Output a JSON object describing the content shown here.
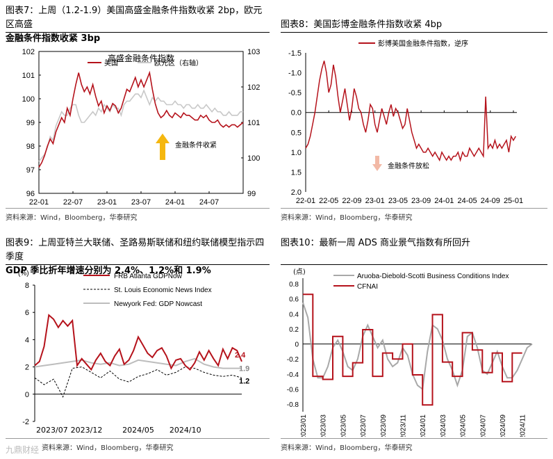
{
  "panels": [
    {
      "title_line1": "图表7：上周（1.2-1.9）美国高盛金融条件指数收紧 2bp，欧元区高盛",
      "title_line2": "金融条件指数收紧 3bp",
      "source": "资料来源：Wind，Bloomberg，华泰研究"
    },
    {
      "title_line1": "图表8：美国彭博金融条件指数收紧 4bp",
      "title_line2": "",
      "source": "资料来源：Wind，Bloomberg，华泰研究"
    },
    {
      "title_line1": "图表9：上周亚特兰大联储、圣路易斯联储和纽约联储模型指示四季度",
      "title_line2": "GDP 季比折年增速分别为 2.4%、1.2%和 1.9%",
      "source": "资料来源：Wind，Bloomberg，华泰研究"
    },
    {
      "title_line1": "图表10：最新一周 ADS 商业景气指数有所回升",
      "title_line2": "",
      "source": "资料来源：Wind，Bloomberg，华泰研究"
    }
  ],
  "watermark": "九鼎财经",
  "colors": {
    "red": "#b5121b",
    "gray": "#c8c8c8",
    "dark": "#000000",
    "arrow_up": "#f5b70f",
    "arrow_down": "#f2b9a6"
  },
  "chart_data": [
    {
      "type": "line",
      "title": "高盛金融条件指数",
      "categories": [
        "22-01",
        "22-07",
        "23-01",
        "23-07",
        "24-01",
        "24-07"
      ],
      "ylim_left": [
        96,
        102
      ],
      "ylim_right": [
        99,
        103
      ],
      "yticks_left": [
        "102",
        "101",
        "100",
        "99",
        "98",
        "97",
        "96"
      ],
      "yticks_right": [
        "103",
        "102",
        "101",
        "100",
        "99"
      ],
      "annotation": "金融条件收紧",
      "series": [
        {
          "name": "美国",
          "axis": "left",
          "x": [
            0,
            0.5,
            1,
            1.5,
            2,
            2.5,
            3,
            3.5,
            4,
            4.5,
            5,
            5.5,
            6,
            6.5,
            7,
            7.5,
            8,
            8.5,
            9,
            9.5,
            10,
            10.5,
            11,
            11.5,
            12,
            12.5,
            13,
            13.5,
            14,
            14.5,
            15,
            15.5,
            16,
            16.5,
            17,
            17.5,
            18,
            18.5,
            19,
            19.5,
            20,
            20.5,
            21,
            21.5,
            22,
            22.5,
            23,
            23.5,
            24,
            24.5,
            25,
            25.5,
            26,
            26.5,
            27,
            27.5,
            28,
            28.5,
            29,
            29.5,
            30,
            30.5,
            31,
            31.5,
            32,
            32.5,
            33,
            33.5,
            34,
            34.5,
            35,
            35.5,
            36
          ],
          "values": [
            97.1,
            97.3,
            97.6,
            98.0,
            98.3,
            98.1,
            98.6,
            98.9,
            99.2,
            99.0,
            99.6,
            99.3,
            100.0,
            100.6,
            101.1,
            100.6,
            100.3,
            100.5,
            100.2,
            100.6,
            100.1,
            99.7,
            99.9,
            99.4,
            99.7,
            99.5,
            99.8,
            99.7,
            99.4,
            99.6,
            100.0,
            100.4,
            100.3,
            100.6,
            100.9,
            100.5,
            100.8,
            100.5,
            100.8,
            101.1,
            100.4,
            99.8,
            99.4,
            99.2,
            99.3,
            99.5,
            99.3,
            99.2,
            99.4,
            99.3,
            99.2,
            99.4,
            99.3,
            99.3,
            99.2,
            99.1,
            99.1,
            99.3,
            99.2,
            99.3,
            99.1,
            99.0,
            99.0,
            99.1,
            98.9,
            98.8,
            98.9,
            98.8,
            98.9,
            98.9,
            98.8,
            98.9,
            99.0
          ]
        },
        {
          "name": "欧元区（右轴）",
          "axis": "right",
          "x": [
            0,
            0.5,
            1,
            1.5,
            2,
            2.5,
            3,
            3.5,
            4,
            4.5,
            5,
            5.5,
            6,
            6.5,
            7,
            7.5,
            8,
            8.5,
            9,
            9.5,
            10,
            10.5,
            11,
            11.5,
            12,
            12.5,
            13,
            13.5,
            14,
            14.5,
            15,
            15.5,
            16,
            16.5,
            17,
            17.5,
            18,
            18.5,
            19,
            19.5,
            20,
            20.5,
            21,
            21.5,
            22,
            22.5,
            23,
            23.5,
            24,
            24.5,
            25,
            25.5,
            26,
            26.5,
            27,
            27.5,
            28,
            28.5,
            29,
            29.5,
            30,
            30.5,
            31,
            31.5,
            32,
            32.5,
            33,
            33.5,
            34,
            34.5,
            35,
            35.5,
            36
          ],
          "values": [
            99.9,
            100.0,
            100.1,
            100.3,
            100.6,
            100.5,
            100.9,
            101.1,
            101.3,
            101.2,
            101.2,
            101.4,
            101.5,
            101.5,
            101.2,
            101.0,
            101.0,
            101.1,
            101.2,
            101.3,
            101.2,
            101.4,
            101.3,
            101.5,
            101.4,
            101.3,
            101.5,
            101.4,
            101.4,
            101.2,
            101.5,
            101.6,
            101.6,
            101.7,
            101.8,
            101.8,
            101.7,
            101.9,
            101.7,
            101.5,
            101.7,
            101.6,
            101.7,
            101.6,
            101.6,
            101.5,
            101.5,
            101.5,
            101.6,
            101.5,
            101.5,
            101.4,
            101.5,
            101.5,
            101.4,
            101.4,
            101.5,
            101.4,
            101.4,
            101.5,
            101.4,
            101.3,
            101.4,
            101.3,
            101.3,
            101.2,
            101.2,
            101.3,
            101.2,
            101.2,
            101.2,
            101.3,
            101.3
          ]
        }
      ]
    },
    {
      "type": "line",
      "title": "彭博美国金融条件指数，逆序",
      "categories": [
        "22-01",
        "22-05",
        "22-09",
        "23-01",
        "23-05",
        "23-09",
        "24-01",
        "24-05",
        "24-09",
        "25-01"
      ],
      "ylim": [
        2.0,
        -1.5
      ],
      "yticks": [
        "-1.5",
        "-1.0",
        "-0.5",
        "0.0",
        "0.5",
        "1.0",
        "1.5",
        "2.0"
      ],
      "inverted": true,
      "annotation": "金融条件放松",
      "series": [
        {
          "name": "彭博美国金融条件指数，逆序",
          "x": [
            0,
            0.4,
            0.8,
            1.2,
            1.6,
            2.0,
            2.4,
            2.8,
            3.2,
            3.6,
            4.0,
            4.4,
            4.8,
            5.2,
            5.6,
            6.0,
            6.4,
            6.8,
            7.2,
            7.6,
            8.0,
            8.4,
            8.8,
            9.2,
            9.6,
            10.0,
            10.4,
            10.8,
            11.2,
            11.6,
            12.0,
            12.4,
            12.8,
            13.2,
            13.6,
            14.0,
            14.4,
            14.8,
            15.2,
            15.6,
            16.0,
            16.4,
            16.8,
            17.2,
            17.6,
            18.0,
            18.4,
            18.8,
            19.2,
            19.6,
            20.0,
            20.4,
            20.8,
            21.2,
            21.6,
            22.0,
            22.4,
            22.8,
            23.2,
            23.6,
            24.0,
            24.4,
            24.8,
            25.2,
            25.6,
            26.0,
            26.4,
            26.8,
            27.2,
            27.6,
            28.0,
            28.4,
            28.8,
            29.2,
            29.6,
            30.0,
            30.4,
            30.8,
            31.2,
            31.6,
            32.0,
            32.4,
            32.8,
            33.2,
            33.6,
            34.0,
            34.4,
            34.8,
            35.2,
            35.6,
            36.0,
            36.4
          ],
          "values": [
            0.9,
            0.8,
            0.6,
            0.3,
            0.0,
            -0.4,
            -0.8,
            -1.1,
            -1.3,
            -1.0,
            -0.5,
            -0.7,
            -1.2,
            -0.9,
            -0.4,
            0.0,
            -0.3,
            -0.6,
            -0.2,
            0.2,
            -0.1,
            -0.6,
            -0.4,
            -0.1,
            0.0,
            0.3,
            0.5,
            0.2,
            -0.2,
            -0.1,
            0.3,
            0.5,
            0.2,
            -0.1,
            0.1,
            0.3,
            0.0,
            -0.2,
            0.1,
            -0.1,
            0.0,
            0.2,
            0.4,
            0.3,
            -0.1,
            0.2,
            0.5,
            0.7,
            0.9,
            0.8,
            0.9,
            1.0,
            1.0,
            0.9,
            1.0,
            1.1,
            1.0,
            1.1,
            1.2,
            1.0,
            1.1,
            1.2,
            1.1,
            1.2,
            1.1,
            1.1,
            1.0,
            1.2,
            1.0,
            1.1,
            1.1,
            0.9,
            1.0,
            1.1,
            1.0,
            0.9,
            1.0,
            1.1,
            -0.4,
            0.9,
            0.8,
            0.9,
            0.7,
            0.9,
            0.8,
            0.9,
            0.8,
            0.7,
            1.0,
            0.6,
            0.7,
            0.6
          ]
        }
      ]
    },
    {
      "type": "line",
      "title": "",
      "unit": "(%)",
      "categories": [
        "2023/07",
        "2023/12",
        "2024/05",
        "2024/10"
      ],
      "ylim": [
        -2,
        8
      ],
      "yticks": [
        "8",
        "6",
        "4",
        "2",
        "0",
        "-2"
      ],
      "end_labels": [
        "2.4",
        "1.9",
        "1.2"
      ],
      "series": [
        {
          "name": "FRB Atlanta GDPNow",
          "style": "solid-red",
          "x": [
            0,
            0.5,
            1,
            1.5,
            2,
            2.5,
            3,
            3.5,
            4,
            4.5,
            5,
            5.5,
            6,
            6.5,
            7,
            7.5,
            8,
            8.5,
            9,
            9.5,
            10,
            10.5,
            11,
            11.5,
            12,
            12.5,
            13,
            13.5,
            14,
            14.5,
            15,
            15.5,
            16,
            16.5,
            17,
            17.5,
            18,
            18.5,
            19,
            19.5,
            20,
            20.5,
            21,
            21.5,
            22
          ],
          "values": [
            2.1,
            2.4,
            3.5,
            5.8,
            5.5,
            4.9,
            5.4,
            5.0,
            5.4,
            2.1,
            2.6,
            2.2,
            1.8,
            2.5,
            3.0,
            2.4,
            2.1,
            2.8,
            3.3,
            2.2,
            2.5,
            3.2,
            4.2,
            3.6,
            3.0,
            2.7,
            3.2,
            3.4,
            2.8,
            1.9,
            2.5,
            2.6,
            2.1,
            1.8,
            2.3,
            3.1,
            2.5,
            3.2,
            2.6,
            2.1,
            3.3,
            2.6,
            3.4,
            3.2,
            2.4
          ]
        },
        {
          "name": "St. Louis Economic News Index",
          "style": "dashed-black",
          "x": [
            0,
            1,
            2,
            3,
            4,
            5,
            6,
            7,
            8,
            9,
            10,
            11,
            12,
            13,
            14,
            15,
            16,
            17,
            18,
            19,
            20,
            21,
            22
          ],
          "values": [
            1.2,
            0.7,
            1.1,
            -0.2,
            1.9,
            2.0,
            1.6,
            1.2,
            1.7,
            1.1,
            0.9,
            1.3,
            1.5,
            1.8,
            1.4,
            1.6,
            2.0,
            1.9,
            1.6,
            1.4,
            1.3,
            1.4,
            1.2
          ]
        },
        {
          "name": "Newyork Fed: GDP Nowcast",
          "style": "solid-gray",
          "x": [
            0,
            1,
            2,
            3,
            4,
            5,
            6,
            7,
            8,
            9,
            10,
            11,
            12,
            13,
            14,
            15,
            16,
            17,
            18,
            19,
            20,
            21,
            22
          ],
          "values": [
            2.0,
            2.1,
            2.2,
            2.3,
            2.4,
            2.5,
            2.3,
            2.2,
            2.3,
            2.1,
            2.2,
            2.5,
            2.4,
            2.3,
            2.2,
            2.1,
            2.4,
            2.6,
            2.2,
            2.0,
            1.9,
            1.9,
            1.9
          ]
        }
      ]
    },
    {
      "type": "line",
      "title": "",
      "unit": "(点)",
      "categories": [
        "2023/01",
        "2023/03",
        "2023/05",
        "2023/07",
        "2023/09",
        "2023/11",
        "2024/01",
        "2024/03",
        "2024/05",
        "2024/07",
        "2024/09",
        "2024/11"
      ],
      "ylim": [
        -0.9,
        0.8
      ],
      "yticks": [
        "0.8",
        "0.6",
        "0.4",
        "0.2",
        "0",
        "-0.2",
        "-0.4",
        "-0.6",
        "-0.8"
      ],
      "series": [
        {
          "name": "Aruoba-Diebold-Scotti Business Conditions Index",
          "style": "solid-gray",
          "x": [
            0,
            0.5,
            1,
            1.5,
            2,
            2.5,
            3,
            3.5,
            4,
            4.5,
            5,
            5.5,
            6,
            6.5,
            7,
            7.5,
            8,
            8.5,
            9,
            9.5,
            10,
            10.5,
            11,
            11.5,
            12,
            12.5,
            13,
            13.5,
            14,
            14.5,
            15,
            15.5,
            16,
            16.5,
            17,
            17.5,
            18,
            18.5,
            19,
            19.5,
            20,
            20.5,
            21,
            21.5,
            22,
            22.5,
            23
          ],
          "values": [
            0.55,
            0.35,
            -0.2,
            -0.45,
            -0.45,
            -0.3,
            -0.05,
            0.05,
            -0.1,
            -0.3,
            -0.35,
            -0.2,
            0.1,
            0.25,
            0.1,
            -0.05,
            0.05,
            -0.2,
            -0.3,
            -0.25,
            -0.05,
            -0.15,
            -0.4,
            -0.55,
            -0.6,
            -0.1,
            0.25,
            0.2,
            0.05,
            -0.2,
            -0.35,
            -0.55,
            -0.35,
            0.1,
            0.15,
            -0.05,
            -0.35,
            -0.4,
            -0.25,
            -0.1,
            -0.3,
            -0.45,
            -0.45,
            -0.35,
            -0.2,
            -0.05,
            0.0
          ]
        },
        {
          "name": "CFNAI",
          "style": "stepped-red",
          "x": [
            0,
            1,
            2,
            3,
            4,
            5,
            6,
            7,
            8,
            9,
            10,
            11,
            12,
            13,
            14,
            15,
            16,
            17,
            18,
            19,
            20,
            21,
            22
          ],
          "values": [
            0.66,
            -0.43,
            -0.47,
            0.1,
            -0.43,
            -0.25,
            0.19,
            -0.43,
            -0.12,
            -0.2,
            0.0,
            -0.41,
            -0.81,
            0.39,
            -0.24,
            -0.43,
            0.15,
            -0.08,
            -0.38,
            -0.12,
            -0.5,
            -0.12,
            -0.12
          ]
        }
      ]
    }
  ]
}
